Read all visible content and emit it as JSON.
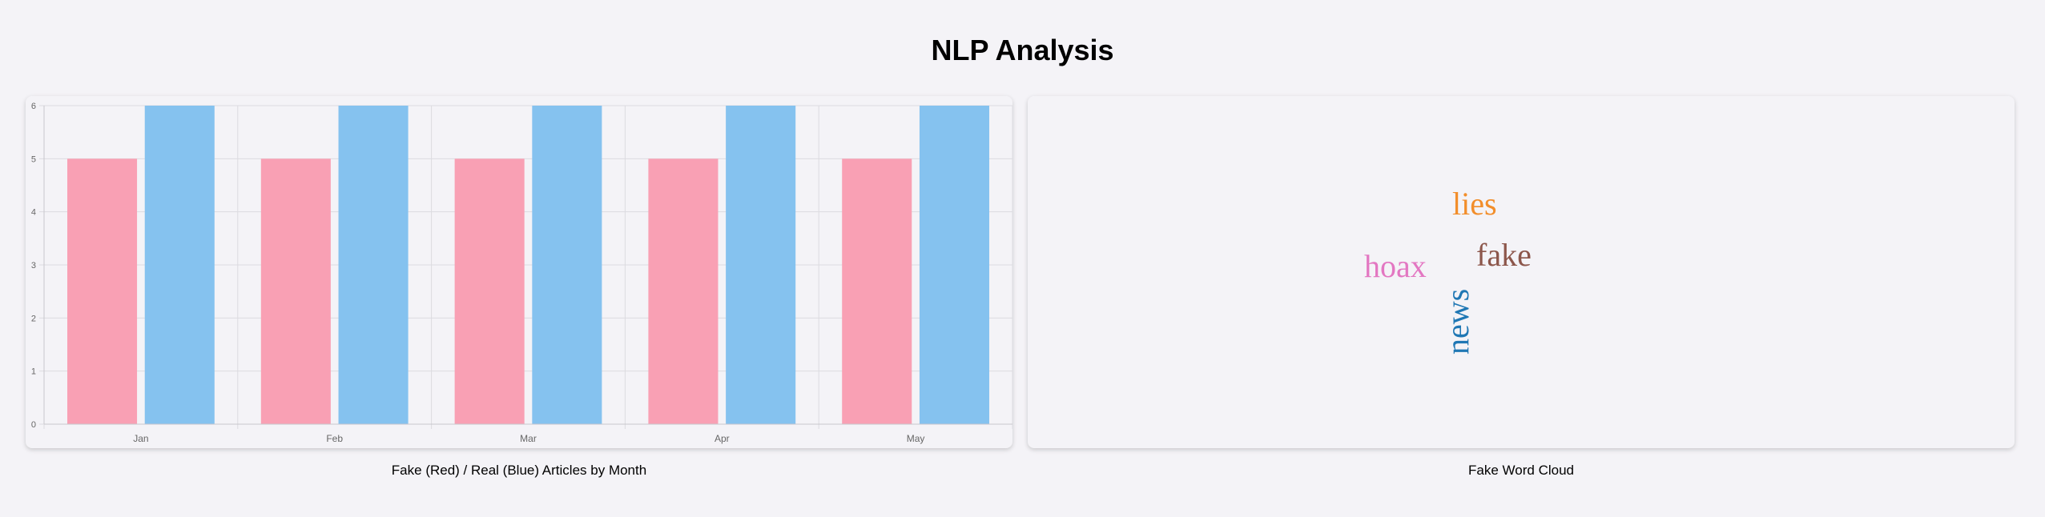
{
  "page_title": "NLP Analysis",
  "bar_panel": {
    "caption": "Fake (Red) / Real (Blue) Articles by Month"
  },
  "cloud_panel": {
    "caption": "Fake Word Cloud",
    "words": [
      {
        "text": "lies",
        "color": "#f28e2b",
        "orientation": "horizontal"
      },
      {
        "text": "fake",
        "color": "#8c564b",
        "orientation": "horizontal"
      },
      {
        "text": "hoax",
        "color": "#e377c2",
        "orientation": "horizontal"
      },
      {
        "text": "news",
        "color": "#1f77b4",
        "orientation": "vertical"
      }
    ]
  },
  "chart_data": {
    "type": "bar",
    "categories": [
      "Jan",
      "Feb",
      "Mar",
      "Apr",
      "May"
    ],
    "series": [
      {
        "values": [
          5,
          5,
          5,
          5,
          5
        ],
        "color": "#f9a0b4"
      },
      {
        "values": [
          6,
          6,
          6,
          6,
          6
        ],
        "color": "#85c2ef"
      }
    ],
    "title": "",
    "xlabel": "",
    "ylabel": "",
    "ylim": [
      0,
      6
    ],
    "yticks": [
      0,
      1,
      2,
      3,
      4,
      5,
      6
    ],
    "grid": true,
    "legend": "none"
  }
}
